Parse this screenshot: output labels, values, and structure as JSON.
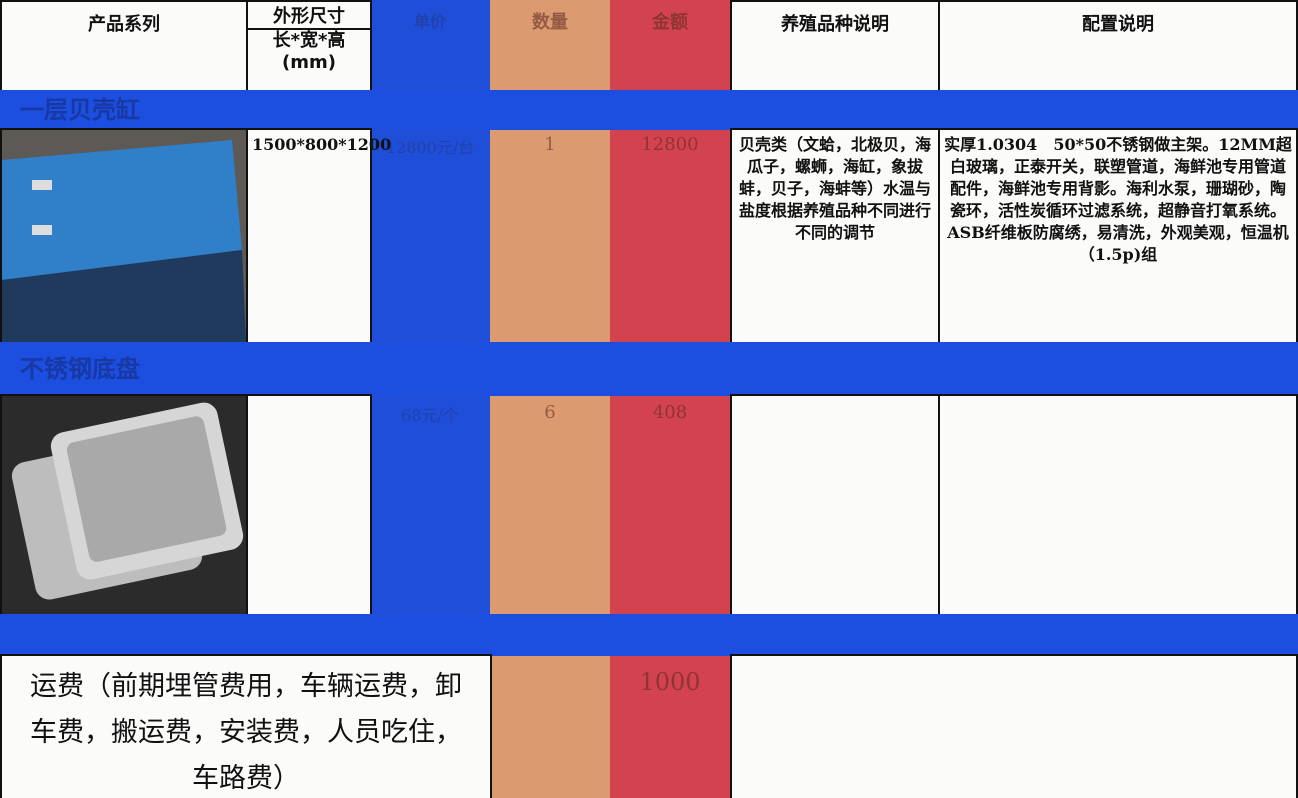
{
  "table": {
    "header": {
      "series": "产品系列",
      "size": "外形尺寸",
      "dims": "长*宽*高",
      "unit": "(mm)",
      "unit_price": "单价",
      "quantity": "数量",
      "amount": "金额",
      "breed": "养殖品种说明",
      "config": "配置说明"
    },
    "sections": [
      {
        "title": "一层贝壳缸",
        "size": "1500*800*1200",
        "unit_price": "12800元/台",
        "quantity": 1,
        "amount": 12800,
        "breed": "贝壳类（文蛤，北极贝，海瓜子，螺蛳，海缸，象拔蚌，贝子，海蚌等）水温与盐度根据养殖品种不同进行不同的调节",
        "config": "实厚1.0304　50*50不锈钢做主架。12MM超白玻璃，正泰开关，联塑管道，海鲜池专用管道配件，海鲜池专用背影。海利水泵，珊瑚砂，陶瓷环，活性炭循环过滤系统，超静音打氧系统。ASB纤维板防腐绣，易清洗，外观美观，恒温机（1.5p)组"
      },
      {
        "title": "不锈钢底盘",
        "unit_price": "68元/个",
        "quantity": 6,
        "amount": 408
      }
    ],
    "freight": {
      "label": "运费（前期埋管费用，车辆运费，卸车费，搬运费，安装费，人员吃住，车路费）",
      "amount": 1000
    }
  }
}
